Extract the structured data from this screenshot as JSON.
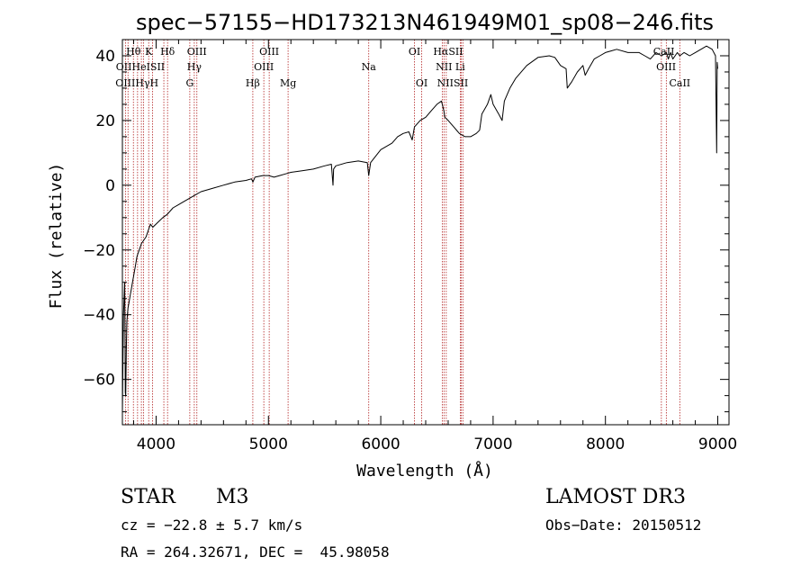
{
  "chart_data": {
    "type": "line",
    "title": "spec−57155−HD173213N461949M01_sp08−246.fits",
    "xlabel": "Wavelength (Å)",
    "ylabel": "Flux (relative)",
    "xlim": [
      3700,
      9100
    ],
    "ylim": [
      -74,
      45
    ],
    "xticks": [
      4000,
      5000,
      6000,
      7000,
      8000,
      9000
    ],
    "yticks": [
      -60,
      -40,
      -20,
      0,
      20,
      40
    ],
    "tick_labels_x": [
      "4000",
      "5000",
      "6000",
      "7000",
      "8000",
      "9000"
    ],
    "tick_labels_y": [
      "−60",
      "−40",
      "−20",
      "0",
      "20",
      "40"
    ],
    "grid": false,
    "series": [
      {
        "name": "flux",
        "x": [
          3700,
          3705,
          3710,
          3715,
          3720,
          3723,
          3726,
          3730,
          3735,
          3740,
          3745,
          3750,
          3760,
          3770,
          3780,
          3790,
          3800,
          3815,
          3830,
          3850,
          3870,
          3890,
          3910,
          3930,
          3950,
          3970,
          4000,
          4030,
          4060,
          4100,
          4150,
          4200,
          4250,
          4300,
          4350,
          4400,
          4500,
          4600,
          4700,
          4800,
          4850,
          4862,
          4880,
          4950,
          5000,
          5050,
          5100,
          5150,
          5200,
          5300,
          5400,
          5500,
          5560,
          5575,
          5580,
          5600,
          5700,
          5800,
          5880,
          5893,
          5910,
          6000,
          6100,
          6150,
          6200,
          6250,
          6280,
          6300,
          6350,
          6400,
          6450,
          6500,
          6540,
          6562,
          6570,
          6600,
          6650,
          6700,
          6750,
          6800,
          6850,
          6880,
          6900,
          6950,
          6980,
          7000,
          7050,
          7080,
          7100,
          7150,
          7200,
          7300,
          7400,
          7500,
          7550,
          7600,
          7650,
          7660,
          7700,
          7750,
          7800,
          7820,
          7850,
          7900,
          7950,
          8000,
          8050,
          8100,
          8200,
          8300,
          8350,
          8400,
          8450,
          8500,
          8542,
          8560,
          8580,
          8600,
          8640,
          8662,
          8700,
          8750,
          8800,
          8850,
          8900,
          8950,
          8980,
          8990,
          8995,
          9000
        ],
        "y": [
          -70,
          -55,
          -40,
          -35,
          -30,
          -45,
          -64,
          -65,
          -50,
          -42,
          -40,
          -38,
          -36,
          -34,
          -32,
          -30,
          -28,
          -25,
          -22,
          -20,
          -18,
          -17,
          -16,
          -14,
          -12,
          -13,
          -12,
          -11,
          -10,
          -9,
          -7,
          -6,
          -5,
          -4,
          -3,
          -2,
          -1,
          0,
          1,
          1.5,
          2,
          1,
          2.5,
          3,
          3,
          2.5,
          3,
          3.5,
          4,
          4.5,
          5,
          6,
          6.5,
          0,
          5,
          6,
          7,
          7.5,
          7,
          3,
          7,
          11,
          13,
          15,
          16,
          16.5,
          14,
          18,
          20,
          21,
          23,
          25,
          26,
          23,
          21,
          20,
          18,
          16,
          15,
          15,
          16,
          17,
          22,
          25,
          28,
          25,
          22,
          20,
          26,
          30,
          33,
          37,
          39.5,
          40,
          39.5,
          37,
          36,
          30,
          32,
          35,
          37,
          34,
          36,
          39,
          40,
          41,
          41.5,
          42,
          41,
          41,
          40,
          39,
          41,
          40,
          41,
          39,
          41,
          39,
          41,
          40,
          41,
          40,
          41,
          42,
          43,
          42,
          40,
          10,
          38,
          36
        ]
      }
    ],
    "line_markers": [
      {
        "wl": 3727,
        "label": "OII"
      },
      {
        "wl": 3750,
        "label": "OIII"
      },
      {
        "wl": 3798,
        "label": "Hθ"
      },
      {
        "wl": 3835,
        "label": "Hθ"
      },
      {
        "wl": 3869,
        "label": "OIII"
      },
      {
        "wl": 3889,
        "label": "HeI"
      },
      {
        "wl": 3934,
        "label": "K"
      },
      {
        "wl": 3968,
        "label": "H"
      },
      {
        "wl": 4069,
        "label": "SII"
      },
      {
        "wl": 4102,
        "label": "Hδ"
      },
      {
        "wl": 4300,
        "label": "G"
      },
      {
        "wl": 4340,
        "label": "Hγ"
      },
      {
        "wl": 4363,
        "label": "OIII"
      },
      {
        "wl": 4861,
        "label": "Hβ"
      },
      {
        "wl": 4959,
        "label": "OIII"
      },
      {
        "wl": 5007,
        "label": "OIII"
      },
      {
        "wl": 5175,
        "label": "Mg"
      },
      {
        "wl": 5893,
        "label": "Na"
      },
      {
        "wl": 6300,
        "label": "OI"
      },
      {
        "wl": 6364,
        "label": "OI"
      },
      {
        "wl": 6548,
        "label": "NII"
      },
      {
        "wl": 6563,
        "label": "Hα"
      },
      {
        "wl": 6583,
        "label": "NII"
      },
      {
        "wl": 6708,
        "label": "Li"
      },
      {
        "wl": 6717,
        "label": "SII"
      },
      {
        "wl": 6731,
        "label": "SII"
      },
      {
        "wl": 8498,
        "label": "CaII"
      },
      {
        "wl": 8542,
        "label": "CaII"
      },
      {
        "wl": 8662,
        "label": "CaII"
      }
    ],
    "marker_labels": [
      {
        "text": "Hθ",
        "wl": 3798,
        "row": 0
      },
      {
        "text": "K",
        "wl": 3934,
        "row": 0
      },
      {
        "text": "Hδ",
        "wl": 4102,
        "row": 0
      },
      {
        "text": "OIII",
        "wl": 4363,
        "row": 0
      },
      {
        "text": "OIII",
        "wl": 5007,
        "row": 0
      },
      {
        "text": "OI",
        "wl": 6300,
        "row": 0
      },
      {
        "text": "HαSII",
        "wl": 6600,
        "row": 0
      },
      {
        "text": "CaII",
        "wl": 8520,
        "row": 0
      },
      {
        "text": "OIIHeISII",
        "wl": 3860,
        "row": 1
      },
      {
        "text": "Hγ",
        "wl": 4340,
        "row": 1
      },
      {
        "text": "OIII",
        "wl": 4959,
        "row": 1
      },
      {
        "text": "Na",
        "wl": 5893,
        "row": 1
      },
      {
        "text": "NII Li",
        "wl": 6620,
        "row": 1
      },
      {
        "text": "OIII",
        "wl": 8540,
        "row": 1
      },
      {
        "text": "OIIIHγH",
        "wl": 3830,
        "row": 2
      },
      {
        "text": "G",
        "wl": 4300,
        "row": 2
      },
      {
        "text": "Hβ",
        "wl": 4861,
        "row": 2
      },
      {
        "text": "Mg",
        "wl": 5175,
        "row": 2
      },
      {
        "text": "OI",
        "wl": 6364,
        "row": 2
      },
      {
        "text": "NIISII",
        "wl": 6640,
        "row": 2
      },
      {
        "text": "CaII",
        "wl": 8662,
        "row": 2
      }
    ]
  },
  "info": {
    "object_class": "STAR",
    "subclass": "M3",
    "survey": "LAMOST DR3",
    "cz": "cz = −22.8 ± 5.7 km/s",
    "obs_date": "Obs−Date: 20150512",
    "coords": "RA = 264.32671, DEC =  45.98058"
  },
  "colors": {
    "line": "#000000",
    "marker": "#b22222",
    "text": "#000000"
  }
}
